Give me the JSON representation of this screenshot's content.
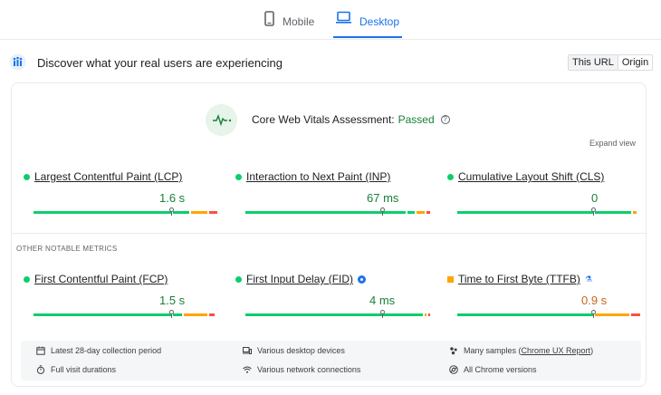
{
  "tabs": {
    "mobile": "Mobile",
    "desktop": "Desktop"
  },
  "header": {
    "title": "Discover what your real users are experiencing"
  },
  "toggle": {
    "this_url": "This URL",
    "origin": "Origin"
  },
  "assessment": {
    "label": "Core Web Vitals Assessment:",
    "status": "Passed",
    "help": "?"
  },
  "expand_label": "Expand view",
  "core_metrics": [
    {
      "name": "Largest Contentful Paint (LCP)",
      "value": "1.6 s",
      "status": "good"
    },
    {
      "name": "Interaction to Next Paint (INP)",
      "value": "67 ms",
      "status": "good"
    },
    {
      "name": "Cumulative Layout Shift (CLS)",
      "value": "0",
      "status": "good"
    }
  ],
  "notable_heading": "OTHER NOTABLE METRICS",
  "other_metrics": [
    {
      "name": "First Contentful Paint (FCP)",
      "value": "1.5 s",
      "status": "good"
    },
    {
      "name": "First Input Delay (FID)",
      "value": "4 ms",
      "status": "good"
    },
    {
      "name": "Time to First Byte (TTFB)",
      "value": "0.9 s",
      "status": "needs-improvement"
    }
  ],
  "footer": {
    "period": "Latest 28-day collection period",
    "devices": "Various desktop devices",
    "samples_prefix": "Many samples (",
    "samples_link": "Chrome UX Report",
    "samples_suffix": ")",
    "durations": "Full visit durations",
    "connections": "Various network connections",
    "versions": "All Chrome versions"
  },
  "colors": {
    "good": "#0cce6b",
    "average": "#ffa400",
    "poor": "#ff4e42",
    "accent": "#1a73e8",
    "passed": "#188038",
    "ttfb_value": "#c5661d"
  }
}
